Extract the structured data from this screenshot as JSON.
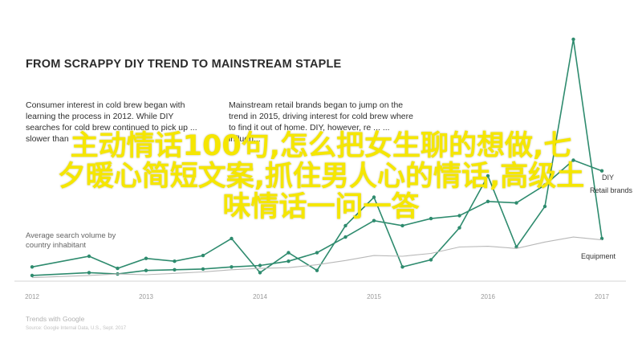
{
  "chart_data": {
    "type": "line",
    "title": "FROM SCRAPPY DIY TREND TO MAINSTREAM STAPLE",
    "annotations": [
      "Consumer interest in cold brew began with learning the process in 2012. While DIY searches for cold brew continued to pick up ... slower than",
      "Mainstream retail brands began to jump on the trend in 2015, driving interest for cold brew where to find it out of home. DIY, however, re ... ... influen..."
    ],
    "ylabel": "Average search volume by country inhabitant",
    "x_ticks": [
      "2012",
      "2013",
      "2014",
      "2015",
      "2016",
      "2017"
    ],
    "x": [
      2012.0,
      2012.5,
      2012.75,
      2013.0,
      2013.25,
      2013.5,
      2013.75,
      2014.0,
      2014.25,
      2014.5,
      2014.75,
      2015.0,
      2015.25,
      2015.5,
      2015.75,
      2016.0,
      2016.25,
      2016.5,
      2016.75,
      2017.0
    ],
    "series": [
      {
        "name": "DIY",
        "color": "#2e8b6e",
        "values": [
          2.0,
          3.5,
          1.8,
          3.2,
          2.8,
          3.6,
          6.0,
          1.2,
          4.0,
          1.5,
          7.8,
          11.8,
          2.0,
          3.0,
          7.5,
          14.8,
          4.8,
          10.5,
          34.0,
          6.0
        ]
      },
      {
        "name": "Retail brands",
        "color": "#2e8b6e",
        "values": [
          0.8,
          1.2,
          1.0,
          1.5,
          1.6,
          1.7,
          2.0,
          2.2,
          2.8,
          4.0,
          6.2,
          8.5,
          7.8,
          8.8,
          9.2,
          11.2,
          11.0,
          13.5,
          17.0,
          15.5
        ]
      },
      {
        "name": "Equipment",
        "color": "#b8b8b8",
        "values": [
          0.5,
          0.8,
          1.0,
          0.9,
          1.1,
          1.3,
          1.6,
          1.8,
          1.9,
          2.3,
          2.9,
          3.6,
          3.5,
          3.9,
          4.8,
          4.9,
          4.6,
          5.5,
          6.2,
          5.8
        ]
      }
    ],
    "ylim": [
      0,
      35
    ],
    "grid": false,
    "legend": "right",
    "watermark": "Trends with Google",
    "source": "Source: Google Internal Data, U.S., Sept. 2017",
    "overlay_text": [
      "主动情话100句,怎么把女生聊的想做,七",
      "夕暖心简短文案,抓住男人心的情话,高级土",
      "味情话一问一答"
    ]
  }
}
